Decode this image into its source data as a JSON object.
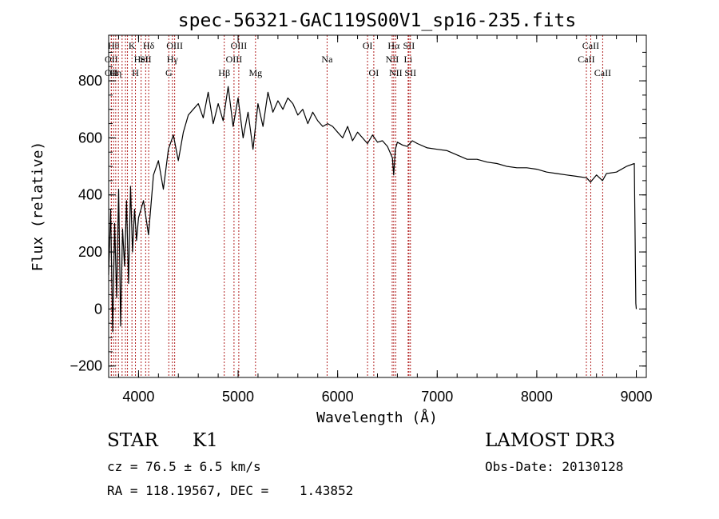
{
  "chart_data": {
    "type": "line",
    "title": "spec-56321-GAC119S00V1_sp16-235.fits",
    "xlabel": "Wavelength (Å)",
    "ylabel": "Flux (relative)",
    "xlim": [
      3700,
      9100
    ],
    "ylim": [
      -240,
      960
    ],
    "xticks": [
      4000,
      5000,
      6000,
      7000,
      8000,
      9000
    ],
    "xtick_labels": [
      "4000",
      "5000",
      "6000",
      "7000",
      "8000",
      "9000"
    ],
    "yticks": [
      -200,
      0,
      200,
      400,
      600,
      800
    ],
    "ytick_labels": [
      "−200",
      "0",
      "200",
      "400",
      "600",
      "800"
    ],
    "grid": false,
    "line_color": "#000000",
    "marker_color": "#b22222",
    "series": [
      {
        "x": [
          3700,
          3720,
          3740,
          3760,
          3780,
          3800,
          3820,
          3840,
          3860,
          3880,
          3900,
          3920,
          3940,
          3960,
          3980,
          4000,
          4050,
          4100,
          4150,
          4200,
          4250,
          4300,
          4350,
          4400,
          4450,
          4500,
          4550,
          4600,
          4650,
          4700,
          4750,
          4800,
          4850,
          4900,
          4950,
          5000,
          5050,
          5100,
          5150,
          5200,
          5250,
          5300,
          5350,
          5400,
          5450,
          5500,
          5550,
          5600,
          5650,
          5700,
          5750,
          5800,
          5850,
          5900,
          5950,
          6000,
          6050,
          6100,
          6150,
          6200,
          6250,
          6300,
          6350,
          6400,
          6450,
          6500,
          6550,
          6563,
          6580,
          6600,
          6650,
          6700,
          6750,
          6800,
          6900,
          7000,
          7100,
          7200,
          7300,
          7400,
          7500,
          7600,
          7700,
          7800,
          7900,
          8000,
          8100,
          8200,
          8300,
          8400,
          8500,
          8540,
          8600,
          8660,
          8700,
          8800,
          8900,
          8980,
          8995,
          9000
        ],
        "y": [
          120,
          350,
          -80,
          300,
          40,
          420,
          -60,
          280,
          150,
          380,
          90,
          430,
          200,
          350,
          240,
          320,
          380,
          260,
          470,
          520,
          420,
          560,
          610,
          520,
          620,
          680,
          700,
          720,
          670,
          760,
          650,
          720,
          660,
          780,
          640,
          740,
          600,
          690,
          560,
          720,
          640,
          760,
          690,
          730,
          700,
          740,
          720,
          680,
          700,
          650,
          690,
          660,
          640,
          650,
          640,
          620,
          600,
          640,
          590,
          620,
          600,
          580,
          610,
          585,
          590,
          570,
          530,
          470,
          560,
          585,
          575,
          570,
          590,
          580,
          565,
          560,
          555,
          540,
          525,
          525,
          515,
          510,
          500,
          495,
          495,
          490,
          480,
          475,
          470,
          465,
          460,
          445,
          470,
          450,
          475,
          480,
          500,
          510,
          20,
          0
        ]
      }
    ],
    "line_markers": [
      {
        "w": 3750,
        "label": "Hθ",
        "row": 0
      },
      {
        "w": 3727,
        "label": "OII",
        "row": 1
      },
      {
        "w": 3727,
        "label": "OII",
        "row": 2
      },
      {
        "w": 3771,
        "label": "Hη",
        "row": 2
      },
      {
        "w": 3798,
        "label": "",
        "row": -1
      },
      {
        "w": 3835,
        "label": "",
        "row": -1
      },
      {
        "w": 3869,
        "label": "",
        "row": -1
      },
      {
        "w": 3889,
        "label": "",
        "row": -1
      },
      {
        "w": 3934,
        "label": "K",
        "row": 0
      },
      {
        "w": 3969,
        "label": "H",
        "row": 2
      },
      {
        "w": 4026,
        "label": "HeI",
        "row": 1
      },
      {
        "w": 4072,
        "label": "SII",
        "row": 1
      },
      {
        "w": 4102,
        "label": "Hδ",
        "row": 0
      },
      {
        "w": 4304,
        "label": "G",
        "row": 2
      },
      {
        "w": 4340,
        "label": "Hγ",
        "row": 1
      },
      {
        "w": 4363,
        "label": "OIII",
        "row": 0
      },
      {
        "w": 4861,
        "label": "Hβ",
        "row": 2
      },
      {
        "w": 4959,
        "label": "OIII",
        "row": 1
      },
      {
        "w": 5007,
        "label": "OIII",
        "row": 0
      },
      {
        "w": 5175,
        "label": "Mg",
        "row": 2
      },
      {
        "w": 5894,
        "label": "Na",
        "row": 1
      },
      {
        "w": 6300,
        "label": "OI",
        "row": 0
      },
      {
        "w": 6363,
        "label": "OI",
        "row": 2
      },
      {
        "w": 6548,
        "label": "NII",
        "row": 1
      },
      {
        "w": 6563,
        "label": "Hα",
        "row": 0
      },
      {
        "w": 6583,
        "label": "NII",
        "row": 2
      },
      {
        "w": 6708,
        "label": "Li",
        "row": 1
      },
      {
        "w": 6716,
        "label": "SII",
        "row": 0
      },
      {
        "w": 6731,
        "label": "SII",
        "row": 2
      },
      {
        "w": 8498,
        "label": "CaII",
        "row": 1
      },
      {
        "w": 8542,
        "label": "CaII",
        "row": 0
      },
      {
        "w": 8662,
        "label": "CaII",
        "row": 2
      }
    ]
  },
  "info": {
    "object_class": "STAR",
    "subclass": "K1",
    "survey": "LAMOST DR3",
    "redshift": "cz = 76.5 ± 6.5 km/s",
    "obs_date": "Obs-Date: 20130128",
    "coords": "RA = 118.19567, DEC =    1.43852"
  }
}
